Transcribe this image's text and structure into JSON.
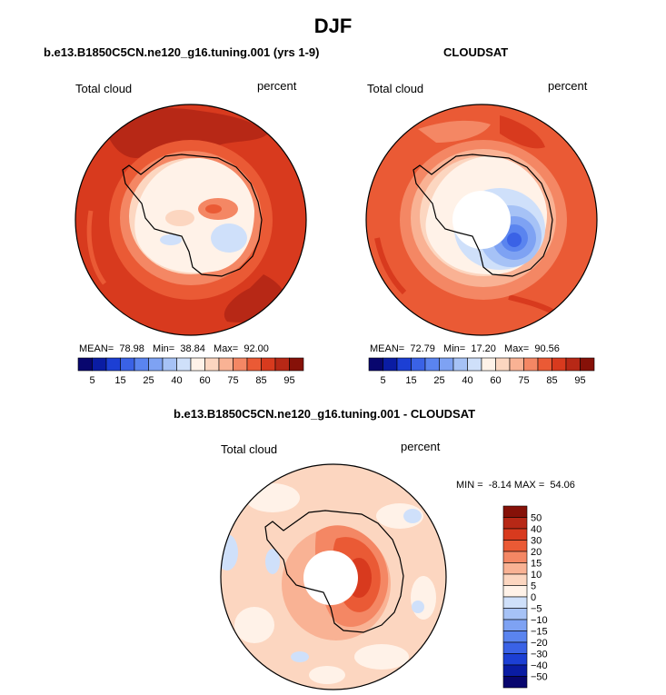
{
  "figure_title": "DJF",
  "chart_data": [
    {
      "type": "heatmap",
      "projection": "south-polar-stereographic",
      "title": "b.e13.B1850C5CN.ne120_g16.tuning.001 (yrs 1-9)",
      "left_label": "Total cloud",
      "right_label": "percent",
      "stats": {
        "mean_label": "MEAN=",
        "mean": "78.98",
        "min_label": "Min=",
        "min": "38.84",
        "max_label": "Max=",
        "max": "92.00"
      },
      "colorbar": {
        "orientation": "horizontal",
        "levels": [
          5,
          10,
          15,
          20,
          25,
          30,
          40,
          50,
          60,
          65,
          70,
          75,
          80,
          85,
          90,
          95
        ],
        "tick_labels": [
          "5",
          "15",
          "25",
          "40",
          "60",
          "75",
          "85",
          "95"
        ],
        "colors": [
          "#08066e",
          "#0a1ca3",
          "#1c3fd4",
          "#3a62e6",
          "#5a84ef",
          "#7ea2f3",
          "#a6c2f6",
          "#cfe0fa",
          "#fff2e8",
          "#fcd6c0",
          "#f9b294",
          "#f48764",
          "#ea5a35",
          "#d83a1e",
          "#b72816",
          "#861108"
        ]
      }
    },
    {
      "type": "heatmap",
      "projection": "south-polar-stereographic",
      "title": "CLOUDSAT",
      "left_label": "Total cloud",
      "right_label": "percent",
      "stats": {
        "mean_label": "MEAN=",
        "mean": "72.79",
        "min_label": "Min=",
        "min": "17.20",
        "max_label": "Max=",
        "max": "90.56"
      },
      "colorbar": {
        "orientation": "horizontal",
        "levels": [
          5,
          10,
          15,
          20,
          25,
          30,
          40,
          50,
          60,
          65,
          70,
          75,
          80,
          85,
          90,
          95
        ],
        "tick_labels": [
          "5",
          "15",
          "25",
          "40",
          "60",
          "75",
          "85",
          "95"
        ],
        "colors": [
          "#08066e",
          "#0a1ca3",
          "#1c3fd4",
          "#3a62e6",
          "#5a84ef",
          "#7ea2f3",
          "#a6c2f6",
          "#cfe0fa",
          "#fff2e8",
          "#fcd6c0",
          "#f9b294",
          "#f48764",
          "#ea5a35",
          "#d83a1e",
          "#b72816",
          "#861108"
        ]
      }
    },
    {
      "type": "heatmap",
      "projection": "south-polar-stereographic",
      "title": "b.e13.B1850C5CN.ne120_g16.tuning.001 - CLOUDSAT",
      "left_label": "Total cloud",
      "right_label": "percent",
      "stats": {
        "min_label": "MIN =",
        "min": "-8.14",
        "max_label": "MAX =",
        "max": "54.06"
      },
      "colorbar": {
        "orientation": "vertical",
        "levels": [
          50,
          40,
          30,
          20,
          15,
          10,
          5,
          0,
          -5,
          -10,
          -15,
          -20,
          -30,
          -40,
          -50
        ],
        "tick_labels": [
          "50",
          "40",
          "30",
          "20",
          "15",
          "10",
          "5",
          "0",
          "−5",
          "−10",
          "−15",
          "−20",
          "−30",
          "−40",
          "−50"
        ],
        "colors": [
          "#861108",
          "#b72816",
          "#d83a1e",
          "#ea5a35",
          "#f48764",
          "#f9b294",
          "#fcd6c0",
          "#fff2e8",
          "#cfe0fa",
          "#a6c2f6",
          "#7ea2f3",
          "#5a84ef",
          "#3a62e6",
          "#1c3fd4",
          "#0a1ca3",
          "#08066e"
        ]
      }
    }
  ]
}
